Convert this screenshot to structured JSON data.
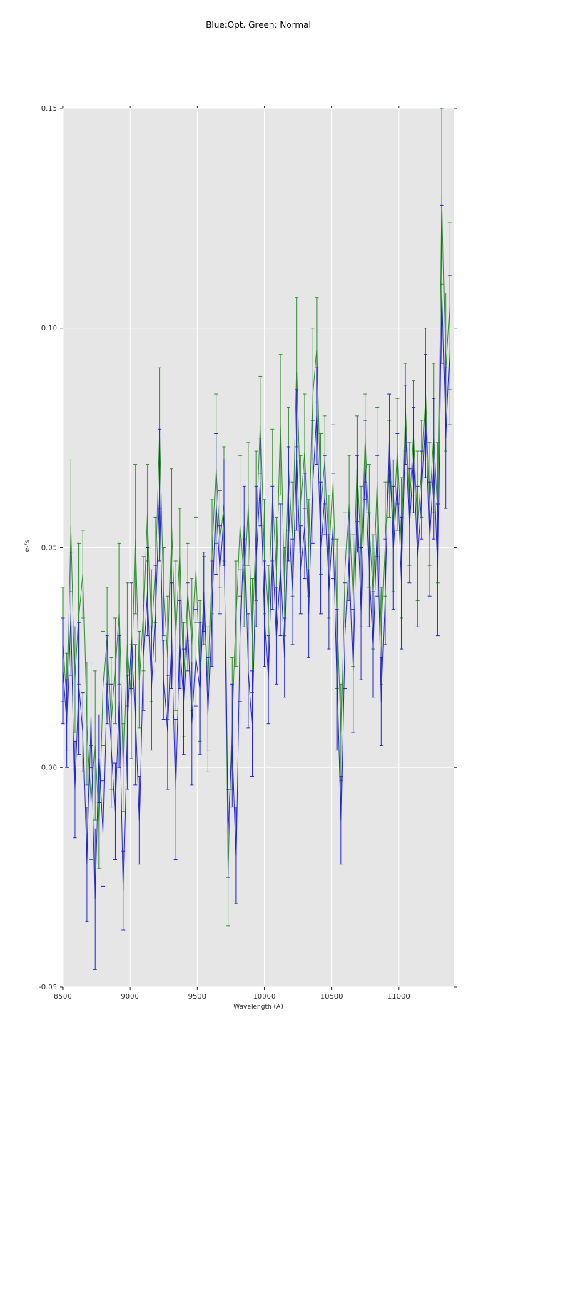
{
  "chart_data": {
    "type": "line",
    "title": "Blue:Opt. Green: Normal",
    "xlabel": "Wavelength (A)",
    "ylabel": "e-/s",
    "xlim": [
      8500,
      11410
    ],
    "ylim": [
      -0.05,
      0.15
    ],
    "xticks": {
      "values": [
        8500,
        9000,
        9500,
        10000,
        10500,
        11000
      ],
      "labels": [
        "8500",
        "9000",
        "9500",
        "10000",
        "10500",
        "11000"
      ]
    },
    "yticks": {
      "values": [
        -0.05,
        0.0,
        0.05,
        0.1,
        0.15
      ],
      "labels": [
        "-0.05",
        "0.00",
        "0.05",
        "0.10",
        "0.15"
      ]
    },
    "grid": true,
    "legend_position": "none",
    "plot_background": "#e6e6e6",
    "grid_color": "#ffffff",
    "tick_color": "#262626",
    "series": [
      {
        "name": "Normal",
        "color": "#2e8b2e",
        "marker": "errorbar-line",
        "x": [
          8500,
          8530,
          8560,
          8590,
          8620,
          8650,
          8680,
          8710,
          8740,
          8770,
          8800,
          8830,
          8860,
          8890,
          8920,
          8950,
          8980,
          9010,
          9040,
          9070,
          9100,
          9130,
          9160,
          9190,
          9220,
          9250,
          9280,
          9310,
          9340,
          9370,
          9400,
          9430,
          9460,
          9490,
          9520,
          9550,
          9580,
          9610,
          9640,
          9670,
          9700,
          9730,
          9760,
          9790,
          9820,
          9850,
          9880,
          9910,
          9940,
          9970,
          10000,
          10030,
          10060,
          10090,
          10120,
          10150,
          10180,
          10210,
          10240,
          10270,
          10300,
          10330,
          10360,
          10390,
          10420,
          10450,
          10480,
          10510,
          10540,
          10570,
          10600,
          10630,
          10660,
          10690,
          10720,
          10750,
          10780,
          10810,
          10840,
          10870,
          10900,
          10930,
          10960,
          10990,
          11020,
          11050,
          11080,
          11110,
          11140,
          11170,
          11200,
          11230,
          11260,
          11290,
          11320,
          11350,
          11380
        ],
        "y": [
          0.028,
          0.015,
          0.055,
          0.02,
          0.035,
          0.044,
          0.01,
          -0.008,
          0.005,
          -0.012,
          0.018,
          0.03,
          0.01,
          0.022,
          0.035,
          0.0,
          0.028,
          0.015,
          0.052,
          0.02,
          0.035,
          0.058,
          0.03,
          0.045,
          0.075,
          0.04,
          0.025,
          0.055,
          0.03,
          0.048,
          0.02,
          0.04,
          0.028,
          0.045,
          0.022,
          0.038,
          0.018,
          0.048,
          0.068,
          0.052,
          0.06,
          -0.025,
          0.01,
          0.035,
          0.055,
          0.042,
          0.06,
          0.03,
          0.055,
          0.078,
          0.048,
          0.035,
          0.062,
          0.045,
          0.078,
          0.04,
          0.068,
          0.052,
          0.09,
          0.06,
          0.072,
          0.05,
          0.085,
          0.095,
          0.06,
          0.07,
          0.048,
          0.065,
          0.035,
          0.008,
          0.045,
          0.06,
          0.038,
          0.068,
          0.048,
          0.075,
          0.055,
          0.04,
          0.065,
          0.03,
          0.052,
          0.068,
          0.055,
          0.072,
          0.05,
          0.082,
          0.06,
          0.075,
          0.055,
          0.068,
          0.085,
          0.06,
          0.075,
          0.058,
          0.13,
          0.09,
          0.105
        ],
        "yerr": [
          0.013,
          0.011,
          0.015,
          0.012,
          0.016,
          0.01,
          0.014,
          0.013,
          0.017,
          0.011,
          0.013,
          0.011,
          0.015,
          0.012,
          0.016,
          0.01,
          0.014,
          0.013,
          0.017,
          0.011,
          0.013,
          0.011,
          0.015,
          0.012,
          0.016,
          0.01,
          0.014,
          0.013,
          0.017,
          0.011,
          0.013,
          0.011,
          0.015,
          0.012,
          0.016,
          0.01,
          0.014,
          0.013,
          0.017,
          0.011,
          0.013,
          0.011,
          0.015,
          0.012,
          0.016,
          0.01,
          0.014,
          0.013,
          0.017,
          0.011,
          0.013,
          0.011,
          0.015,
          0.012,
          0.016,
          0.01,
          0.014,
          0.013,
          0.017,
          0.011,
          0.013,
          0.011,
          0.015,
          0.012,
          0.016,
          0.01,
          0.014,
          0.013,
          0.017,
          0.011,
          0.013,
          0.011,
          0.015,
          0.012,
          0.016,
          0.01,
          0.014,
          0.013,
          0.017,
          0.011,
          0.013,
          0.011,
          0.015,
          0.012,
          0.016,
          0.01,
          0.014,
          0.013,
          0.017,
          0.011,
          0.015,
          0.014,
          0.017,
          0.016,
          0.02,
          0.018,
          0.019
        ]
      },
      {
        "name": "Opt.",
        "color": "#2323cc",
        "marker": "errorbar-line",
        "x": [
          8500,
          8530,
          8560,
          8590,
          8620,
          8650,
          8680,
          8710,
          8740,
          8770,
          8800,
          8830,
          8860,
          8890,
          8920,
          8950,
          8980,
          9010,
          9040,
          9070,
          9100,
          9130,
          9160,
          9190,
          9220,
          9250,
          9280,
          9310,
          9340,
          9370,
          9400,
          9430,
          9460,
          9490,
          9520,
          9550,
          9580,
          9610,
          9640,
          9670,
          9700,
          9730,
          9760,
          9790,
          9820,
          9850,
          9880,
          9910,
          9940,
          9970,
          10000,
          10030,
          10060,
          10090,
          10120,
          10150,
          10180,
          10210,
          10240,
          10270,
          10300,
          10330,
          10360,
          10390,
          10420,
          10450,
          10480,
          10510,
          10540,
          10570,
          10600,
          10630,
          10660,
          10690,
          10720,
          10750,
          10780,
          10810,
          10840,
          10870,
          10900,
          10930,
          10960,
          10990,
          11020,
          11050,
          11080,
          11110,
          11140,
          11170,
          11200,
          11230,
          11260,
          11290,
          11320,
          11350,
          11380
        ],
        "y": [
          0.022,
          0.01,
          0.035,
          -0.005,
          0.018,
          0.008,
          -0.022,
          0.012,
          -0.03,
          0.002,
          -0.015,
          0.02,
          0.005,
          -0.01,
          0.015,
          -0.028,
          0.008,
          0.03,
          0.012,
          -0.012,
          0.025,
          0.04,
          0.018,
          0.035,
          0.062,
          0.02,
          0.008,
          0.03,
          -0.005,
          0.028,
          0.015,
          0.032,
          0.01,
          0.025,
          0.018,
          0.04,
          0.012,
          0.035,
          0.06,
          0.045,
          0.058,
          -0.015,
          0.005,
          -0.02,
          0.03,
          0.055,
          0.022,
          0.01,
          0.048,
          0.065,
          0.035,
          0.02,
          0.05,
          0.03,
          0.045,
          0.025,
          0.06,
          0.04,
          0.07,
          0.045,
          0.055,
          0.035,
          0.065,
          0.08,
          0.05,
          0.062,
          0.04,
          0.055,
          0.02,
          -0.012,
          0.03,
          0.048,
          0.022,
          0.06,
          0.035,
          0.07,
          0.045,
          0.028,
          0.055,
          0.015,
          0.04,
          0.075,
          0.05,
          0.065,
          0.042,
          0.078,
          0.055,
          0.07,
          0.048,
          0.062,
          0.08,
          0.052,
          0.068,
          0.045,
          0.11,
          0.075,
          0.095
        ],
        "yerr": [
          0.012,
          0.01,
          0.014,
          0.011,
          0.015,
          0.009,
          0.013,
          0.012,
          0.016,
          0.01,
          0.012,
          0.01,
          0.014,
          0.011,
          0.015,
          0.009,
          0.013,
          0.012,
          0.016,
          0.01,
          0.012,
          0.01,
          0.014,
          0.011,
          0.015,
          0.009,
          0.013,
          0.012,
          0.016,
          0.01,
          0.012,
          0.01,
          0.014,
          0.011,
          0.015,
          0.009,
          0.013,
          0.012,
          0.016,
          0.01,
          0.012,
          0.01,
          0.014,
          0.011,
          0.015,
          0.009,
          0.013,
          0.012,
          0.016,
          0.01,
          0.012,
          0.01,
          0.014,
          0.011,
          0.015,
          0.009,
          0.013,
          0.012,
          0.016,
          0.01,
          0.012,
          0.01,
          0.014,
          0.011,
          0.015,
          0.009,
          0.013,
          0.012,
          0.016,
          0.01,
          0.012,
          0.01,
          0.014,
          0.011,
          0.015,
          0.009,
          0.013,
          0.012,
          0.016,
          0.01,
          0.012,
          0.01,
          0.014,
          0.011,
          0.015,
          0.009,
          0.013,
          0.012,
          0.016,
          0.01,
          0.014,
          0.013,
          0.016,
          0.015,
          0.018,
          0.016,
          0.017
        ]
      }
    ]
  }
}
